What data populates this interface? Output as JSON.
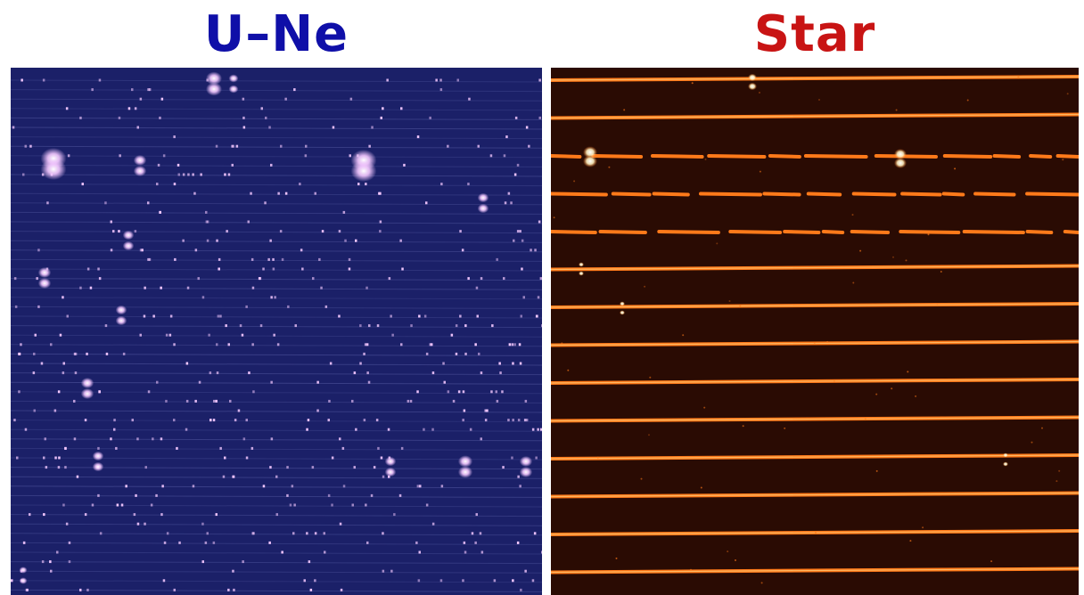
{
  "panels": [
    {
      "title": "U–Ne",
      "title_color": "#0f0fa8",
      "background": "#1b2068",
      "line_color": "#9aa0e8",
      "spot_color": "#f4c8ff"
    },
    {
      "title": "Star",
      "title_color": "#c81414",
      "background": "#2a0b03",
      "line_color": "#ff7a1a",
      "spot_color": "#fff0c0"
    }
  ]
}
